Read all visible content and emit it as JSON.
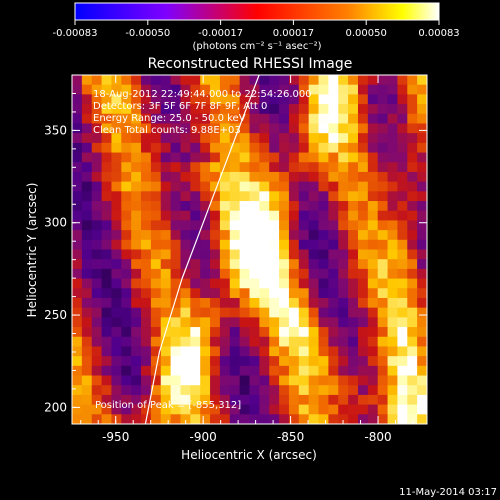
{
  "colorbar": {
    "ticks": [
      "-0.00083",
      "-0.00050",
      "-0.00017",
      "0.00017",
      "0.00050",
      "0.00083"
    ],
    "unit_label": "(photons cm⁻² s⁻¹ asec⁻²)",
    "colors": [
      "#0000ff",
      "#7f00ff",
      "#ff0000",
      "#ff8000",
      "#ffff00",
      "#ffffff"
    ]
  },
  "chart_data": {
    "type": "heatmap",
    "title": "Reconstructed RHESSI Image",
    "xlabel": "Heliocentric X (arcsec)",
    "ylabel": "Heliocentric Y (arcsec)",
    "xlim": [
      -975,
      -772
    ],
    "ylim": [
      191,
      380
    ],
    "x_ticks": [
      "-950",
      "-900",
      "-850",
      "-800"
    ],
    "y_ticks": [
      "200",
      "250",
      "300",
      "350"
    ],
    "annotations": [
      "18-Aug-2012 22:49:44.000 to 22:54:26.000",
      "Detectors: 3F 5F 6F 7F 8F 9F, Att 0",
      "Energy Range: 25.0 - 50.0 keV",
      "Clean    Total counts: 9.88E+03"
    ],
    "peak_label": "Position of Peak = [-855,312]",
    "peak": [
      -855,
      312
    ],
    "limb_curve": [
      [
        -933,
        191
      ],
      [
        -925,
        230
      ],
      [
        -912,
        270
      ],
      [
        -900,
        300
      ],
      [
        -888,
        330
      ],
      [
        -876,
        360
      ],
      [
        -868,
        380
      ]
    ],
    "value_range": [
      -0.00083,
      0.00083
    ]
  },
  "timestamp": "11-May-2014 03:17"
}
